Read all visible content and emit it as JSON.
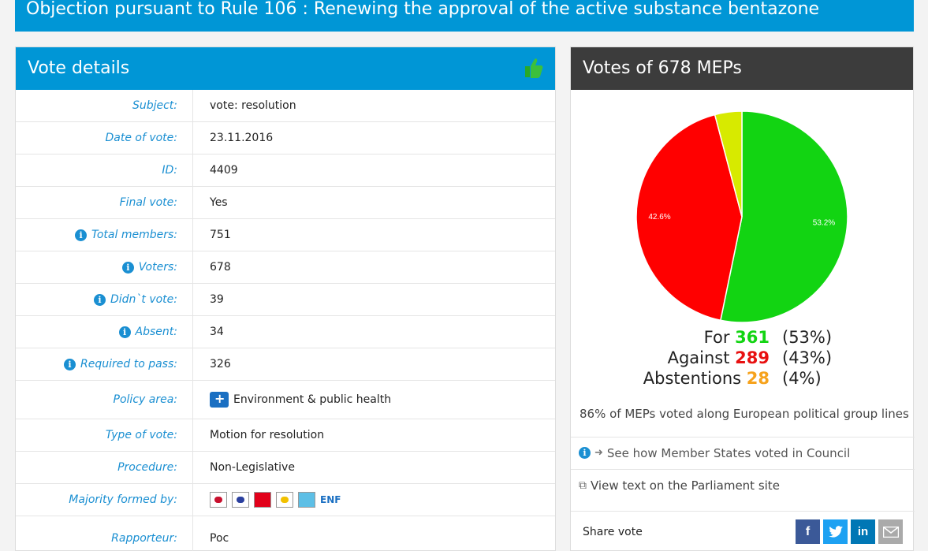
{
  "page_title": "Objection pursuant to Rule 106 : Renewing the approval of the active substance bentazone",
  "details": {
    "heading": "Vote details",
    "rows": [
      {
        "label": "Subject:",
        "value": "vote: resolution",
        "info": false
      },
      {
        "label": "Date of vote:",
        "value": "23.11.2016",
        "info": false
      },
      {
        "label": "ID:",
        "value": "4409",
        "info": false
      },
      {
        "label": "Final vote:",
        "value": "Yes",
        "info": false
      },
      {
        "label": "Total members:",
        "value": "751",
        "info": true
      },
      {
        "label": "Voters:",
        "value": "678",
        "info": true
      },
      {
        "label": "Didn`t vote:",
        "value": "39",
        "info": true
      },
      {
        "label": "Absent:",
        "value": "34",
        "info": true
      },
      {
        "label": "Required to pass:",
        "value": "326",
        "info": true
      },
      {
        "label": "Policy area:",
        "value": "Environment & public health",
        "info": false
      },
      {
        "label": "Type of vote:",
        "value": "Motion for resolution",
        "info": false
      },
      {
        "label": "Procedure:",
        "value": "Non-Legislative",
        "info": false
      },
      {
        "label": "Majority formed by:",
        "value": "ENF",
        "info": false
      },
      {
        "label": "Rapporteur:",
        "value": "Poc",
        "info": false
      }
    ],
    "majority_party_icons": [
      "gue-ngl-icon",
      "greens-efa-icon",
      "s-and-d-icon",
      "efdd-icon",
      "enf-icon"
    ]
  },
  "votes": {
    "heading": "Votes of 678 MEPs",
    "for_label": "For",
    "for_count": "361",
    "for_pct": "(53%)",
    "against_label": "Against",
    "against_count": "289",
    "against_pct": "(43%)",
    "abst_label": "Abstentions",
    "abst_count": "28",
    "abst_pct": "(4%)",
    "group_line": "86% of MEPs voted along European political group lines",
    "council_link": "See how Member States voted in Council",
    "parliament_link": "View text on the Parliament site",
    "share_label": "Share vote"
  },
  "colors": {
    "for": "#12d412",
    "against": "#ff0000",
    "abstention": "#d7ea00",
    "accent": "#0096d6"
  },
  "chart_data": {
    "type": "pie",
    "categories": [
      "For",
      "Against",
      "Abstentions"
    ],
    "values": [
      361,
      289,
      28
    ],
    "data_labels": [
      "53.2%",
      "42.6%",
      ""
    ]
  }
}
